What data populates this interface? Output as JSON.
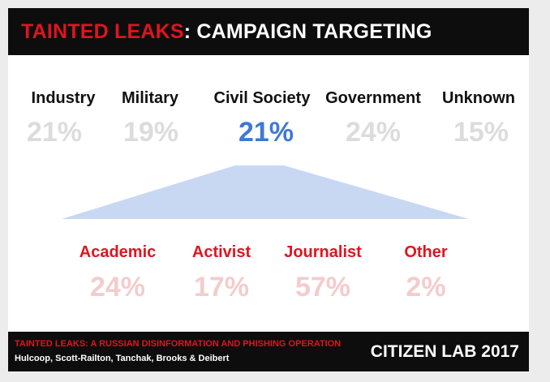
{
  "header": {
    "title_part1": "TAINTED LEAKS",
    "title_sep": ": ",
    "title_part2": "CAMPAIGN TARGETING"
  },
  "chart_data": {
    "type": "table",
    "top_level": {
      "categories": [
        "Industry",
        "Military",
        "Civil Society",
        "Government",
        "Unknown"
      ],
      "values": [
        "21%",
        "19%",
        "21%",
        "24%",
        "15%"
      ],
      "highlighted": "Civil Society"
    },
    "breakdown": {
      "parent": "Civil Society",
      "categories": [
        "Academic",
        "Activist",
        "Journalist",
        "Other"
      ],
      "values": [
        "24%",
        "17%",
        "57%",
        "2%"
      ]
    }
  },
  "footer": {
    "report_title": "TAINTED LEAKS: A RUSSIAN DISINFORMATION AND PHISHING OPERATION",
    "authors": "Hulcoop, Scott-Railton, Tanchak, Brooks & Deibert",
    "brand": "CITIZEN LAB 2017"
  },
  "colors": {
    "header_bg": "#0d0d0d",
    "accent_red": "#e0141f",
    "highlight_blue": "#3f78d6",
    "funnel_fill": "#c8d8f3",
    "muted_gray": "#dcdcdc",
    "muted_pink": "#f3cccc"
  }
}
